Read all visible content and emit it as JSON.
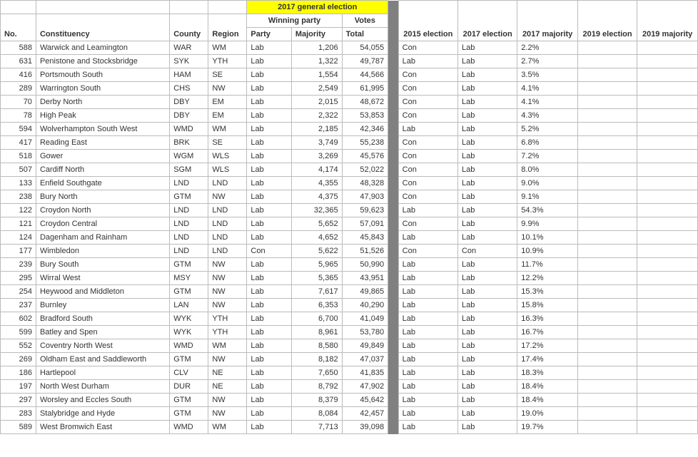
{
  "headers": {
    "main_title": "2017 general election",
    "winning_party": "Winning party",
    "votes": "Votes",
    "no": "No.",
    "constituency": "Constituency",
    "county": "County",
    "region": "Region",
    "party": "Party",
    "majority": "Majority",
    "total": "Total",
    "e2015": "2015 election",
    "e2017": "2017 election",
    "m2017": "2017 majority",
    "e2019": "2019 election",
    "m2019": "2019 majority"
  },
  "col_widths": {
    "no": 48,
    "constituency": 180,
    "county": 52,
    "region": 52,
    "party": 60,
    "majority": 68,
    "total": 62,
    "gap": 14,
    "e2015": 60,
    "e2017": 60,
    "m2017": 60,
    "e2019": 60,
    "m2019": 60
  },
  "rows": [
    {
      "no": "588",
      "constituency": "Warwick and Leamington",
      "county": "WAR",
      "region": "WM",
      "party": "Lab",
      "majority": "1,206",
      "total": "54,055",
      "e2015": "Con",
      "e2017": "Lab",
      "m2017": "2.2%",
      "e2019": "",
      "m2019": ""
    },
    {
      "no": "631",
      "constituency": "Penistone and Stocksbridge",
      "county": "SYK",
      "region": "YTH",
      "party": "Lab",
      "majority": "1,322",
      "total": "49,787",
      "e2015": "Lab",
      "e2017": "Lab",
      "m2017": "2.7%",
      "e2019": "",
      "m2019": ""
    },
    {
      "no": "416",
      "constituency": "Portsmouth South",
      "county": "HAM",
      "region": "SE",
      "party": "Lab",
      "majority": "1,554",
      "total": "44,566",
      "e2015": "Con",
      "e2017": "Lab",
      "m2017": "3.5%",
      "e2019": "",
      "m2019": ""
    },
    {
      "no": "289",
      "constituency": "Warrington South",
      "county": "CHS",
      "region": "NW",
      "party": "Lab",
      "majority": "2,549",
      "total": "61,995",
      "e2015": "Con",
      "e2017": "Lab",
      "m2017": "4.1%",
      "e2019": "",
      "m2019": ""
    },
    {
      "no": "70",
      "constituency": "Derby North",
      "county": "DBY",
      "region": "EM",
      "party": "Lab",
      "majority": "2,015",
      "total": "48,672",
      "e2015": "Con",
      "e2017": "Lab",
      "m2017": "4.1%",
      "e2019": "",
      "m2019": ""
    },
    {
      "no": "78",
      "constituency": "High Peak",
      "county": "DBY",
      "region": "EM",
      "party": "Lab",
      "majority": "2,322",
      "total": "53,853",
      "e2015": "Con",
      "e2017": "Lab",
      "m2017": "4.3%",
      "e2019": "",
      "m2019": ""
    },
    {
      "no": "594",
      "constituency": "Wolverhampton South West",
      "county": "WMD",
      "region": "WM",
      "party": "Lab",
      "majority": "2,185",
      "total": "42,346",
      "e2015": "Lab",
      "e2017": "Lab",
      "m2017": "5.2%",
      "e2019": "",
      "m2019": ""
    },
    {
      "no": "417",
      "constituency": "Reading East",
      "county": "BRK",
      "region": "SE",
      "party": "Lab",
      "majority": "3,749",
      "total": "55,238",
      "e2015": "Con",
      "e2017": "Lab",
      "m2017": "6.8%",
      "e2019": "",
      "m2019": ""
    },
    {
      "no": "518",
      "constituency": "Gower",
      "county": "WGM",
      "region": "WLS",
      "party": "Lab",
      "majority": "3,269",
      "total": "45,576",
      "e2015": "Con",
      "e2017": "Lab",
      "m2017": "7.2%",
      "e2019": "",
      "m2019": ""
    },
    {
      "no": "507",
      "constituency": "Cardiff North",
      "county": "SGM",
      "region": "WLS",
      "party": "Lab",
      "majority": "4,174",
      "total": "52,022",
      "e2015": "Con",
      "e2017": "Lab",
      "m2017": "8.0%",
      "e2019": "",
      "m2019": ""
    },
    {
      "no": "133",
      "constituency": "Enfield Southgate",
      "county": "LND",
      "region": "LND",
      "party": "Lab",
      "majority": "4,355",
      "total": "48,328",
      "e2015": "Con",
      "e2017": "Lab",
      "m2017": "9.0%",
      "e2019": "",
      "m2019": ""
    },
    {
      "no": "238",
      "constituency": "Bury North",
      "county": "GTM",
      "region": "NW",
      "party": "Lab",
      "majority": "4,375",
      "total": "47,903",
      "e2015": "Con",
      "e2017": "Lab",
      "m2017": "9.1%",
      "e2019": "",
      "m2019": ""
    },
    {
      "no": "122",
      "constituency": "Croydon North",
      "county": "LND",
      "region": "LND",
      "party": "Lab",
      "majority": "32,365",
      "total": "59,623",
      "e2015": "Lab",
      "e2017": "Lab",
      "m2017": "54.3%",
      "e2019": "",
      "m2019": ""
    },
    {
      "no": "121",
      "constituency": "Croydon Central",
      "county": "LND",
      "region": "LND",
      "party": "Lab",
      "majority": "5,652",
      "total": "57,091",
      "e2015": "Con",
      "e2017": "Lab",
      "m2017": "9.9%",
      "e2019": "",
      "m2019": ""
    },
    {
      "no": "124",
      "constituency": "Dagenham and Rainham",
      "county": "LND",
      "region": "LND",
      "party": "Lab",
      "majority": "4,652",
      "total": "45,843",
      "e2015": "Lab",
      "e2017": "Lab",
      "m2017": "10.1%",
      "e2019": "",
      "m2019": ""
    },
    {
      "no": "177",
      "constituency": "Wimbledon",
      "county": "LND",
      "region": "LND",
      "party": "Con",
      "majority": "5,622",
      "total": "51,526",
      "e2015": "Con",
      "e2017": "Con",
      "m2017": "10.9%",
      "e2019": "",
      "m2019": ""
    },
    {
      "no": "239",
      "constituency": "Bury South",
      "county": "GTM",
      "region": "NW",
      "party": "Lab",
      "majority": "5,965",
      "total": "50,990",
      "e2015": "Lab",
      "e2017": "Lab",
      "m2017": "11.7%",
      "e2019": "",
      "m2019": ""
    },
    {
      "no": "295",
      "constituency": "Wirral West",
      "county": "MSY",
      "region": "NW",
      "party": "Lab",
      "majority": "5,365",
      "total": "43,951",
      "e2015": "Lab",
      "e2017": "Lab",
      "m2017": "12.2%",
      "e2019": "",
      "m2019": ""
    },
    {
      "no": "254",
      "constituency": "Heywood and Middleton",
      "county": "GTM",
      "region": "NW",
      "party": "Lab",
      "majority": "7,617",
      "total": "49,865",
      "e2015": "Lab",
      "e2017": "Lab",
      "m2017": "15.3%",
      "e2019": "",
      "m2019": ""
    },
    {
      "no": "237",
      "constituency": "Burnley",
      "county": "LAN",
      "region": "NW",
      "party": "Lab",
      "majority": "6,353",
      "total": "40,290",
      "e2015": "Lab",
      "e2017": "Lab",
      "m2017": "15.8%",
      "e2019": "",
      "m2019": ""
    },
    {
      "no": "602",
      "constituency": "Bradford South",
      "county": "WYK",
      "region": "YTH",
      "party": "Lab",
      "majority": "6,700",
      "total": "41,049",
      "e2015": "Lab",
      "e2017": "Lab",
      "m2017": "16.3%",
      "e2019": "",
      "m2019": ""
    },
    {
      "no": "599",
      "constituency": "Batley and Spen",
      "county": "WYK",
      "region": "YTH",
      "party": "Lab",
      "majority": "8,961",
      "total": "53,780",
      "e2015": "Lab",
      "e2017": "Lab",
      "m2017": "16.7%",
      "e2019": "",
      "m2019": ""
    },
    {
      "no": "552",
      "constituency": "Coventry North West",
      "county": "WMD",
      "region": "WM",
      "party": "Lab",
      "majority": "8,580",
      "total": "49,849",
      "e2015": "Lab",
      "e2017": "Lab",
      "m2017": "17.2%",
      "e2019": "",
      "m2019": ""
    },
    {
      "no": "269",
      "constituency": "Oldham East and Saddleworth",
      "county": "GTM",
      "region": "NW",
      "party": "Lab",
      "majority": "8,182",
      "total": "47,037",
      "e2015": "Lab",
      "e2017": "Lab",
      "m2017": "17.4%",
      "e2019": "",
      "m2019": ""
    },
    {
      "no": "186",
      "constituency": "Hartlepool",
      "county": "CLV",
      "region": "NE",
      "party": "Lab",
      "majority": "7,650",
      "total": "41,835",
      "e2015": "Lab",
      "e2017": "Lab",
      "m2017": "18.3%",
      "e2019": "",
      "m2019": ""
    },
    {
      "no": "197",
      "constituency": "North West Durham",
      "county": "DUR",
      "region": "NE",
      "party": "Lab",
      "majority": "8,792",
      "total": "47,902",
      "e2015": "Lab",
      "e2017": "Lab",
      "m2017": "18.4%",
      "e2019": "",
      "m2019": ""
    },
    {
      "no": "297",
      "constituency": "Worsley and Eccles South",
      "county": "GTM",
      "region": "NW",
      "party": "Lab",
      "majority": "8,379",
      "total": "45,642",
      "e2015": "Lab",
      "e2017": "Lab",
      "m2017": "18.4%",
      "e2019": "",
      "m2019": ""
    },
    {
      "no": "283",
      "constituency": "Stalybridge and Hyde",
      "county": "GTM",
      "region": "NW",
      "party": "Lab",
      "majority": "8,084",
      "total": "42,457",
      "e2015": "Lab",
      "e2017": "Lab",
      "m2017": "19.0%",
      "e2019": "",
      "m2019": ""
    },
    {
      "no": "589",
      "constituency": "West Bromwich East",
      "county": "WMD",
      "region": "WM",
      "party": "Lab",
      "majority": "7,713",
      "total": "39,098",
      "e2015": "Lab",
      "e2017": "Lab",
      "m2017": "19.7%",
      "e2019": "",
      "m2019": ""
    }
  ]
}
